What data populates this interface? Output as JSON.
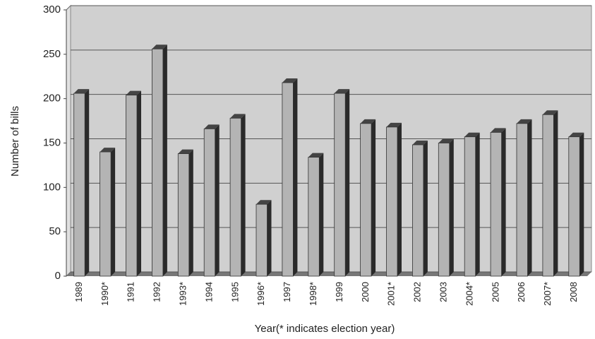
{
  "chart_data": {
    "type": "bar",
    "y_label": "Number of bills",
    "x_label": "Year(* indicates election year)",
    "categories": [
      "1989",
      "1990*",
      "1991",
      "1992",
      "1993*",
      "1994",
      "1995",
      "1996*",
      "1997",
      "1998*",
      "1999",
      "2000",
      "2001*",
      "2002",
      "2003",
      "2004*",
      "2005",
      "2006",
      "2007*",
      "2008"
    ],
    "values": [
      206,
      140,
      204,
      256,
      138,
      166,
      178,
      81,
      218,
      134,
      206,
      172,
      168,
      148,
      150,
      157,
      162,
      172,
      182,
      157
    ],
    "color": "#b4b4b4",
    "ylim": [
      0,
      300
    ],
    "yticks": [
      0,
      50,
      100,
      150,
      200,
      250,
      300
    ],
    "grid": true
  }
}
